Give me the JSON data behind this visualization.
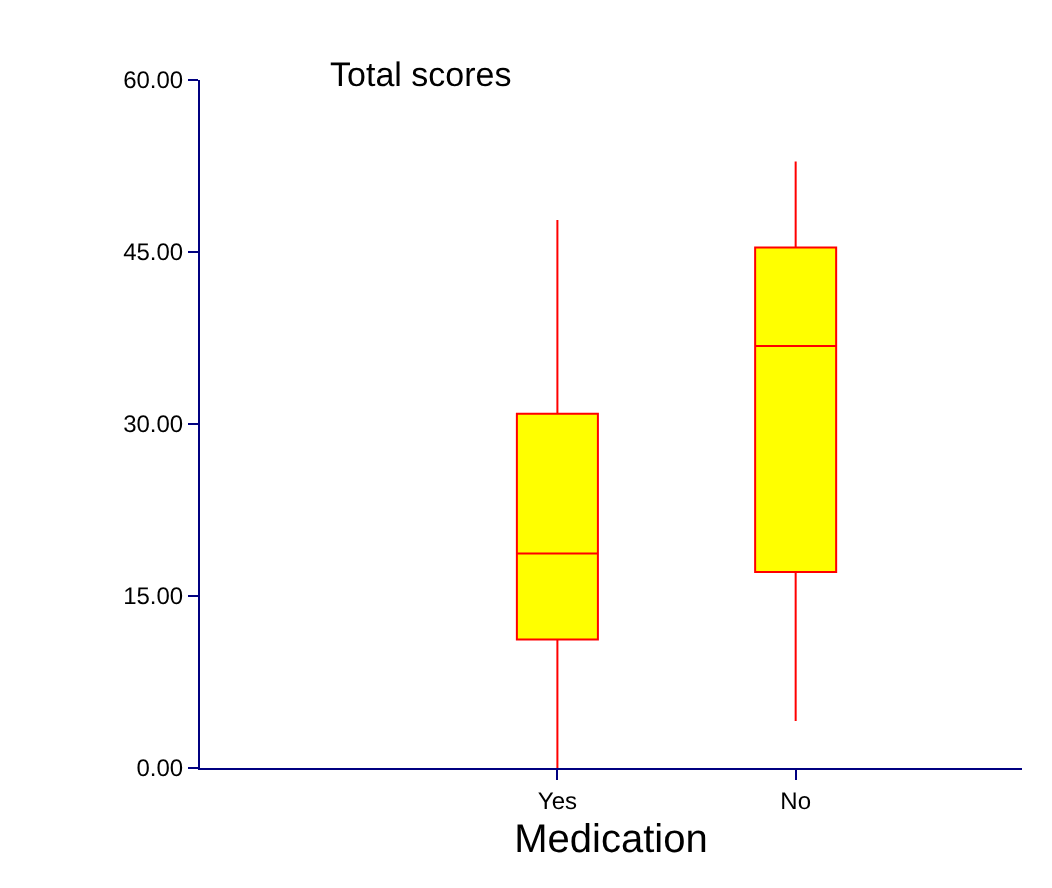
{
  "chart_data": {
    "type": "box",
    "title": "Total scores",
    "xlabel": "Medication",
    "categories": [
      "Yes",
      "No"
    ],
    "boxes": [
      {
        "low": 0,
        "q1": 11.2,
        "median": 18.7,
        "q3": 30.9,
        "high": 47.8
      },
      {
        "low": 4.1,
        "q1": 17.1,
        "median": 36.8,
        "q3": 45.4,
        "high": 52.9
      }
    ],
    "color": "#ff0000",
    "colors": [
      "#ffff00",
      "#ffff00"
    ],
    "ylim": [
      0,
      60
    ],
    "yticks": [
      {
        "value": 0,
        "label": "0.00"
      },
      {
        "value": 15,
        "label": "15.00"
      },
      {
        "value": 30,
        "label": "30.00"
      },
      {
        "value": 45,
        "label": "45.00"
      },
      {
        "value": 60,
        "label": "60.00"
      }
    ],
    "legend": false
  }
}
